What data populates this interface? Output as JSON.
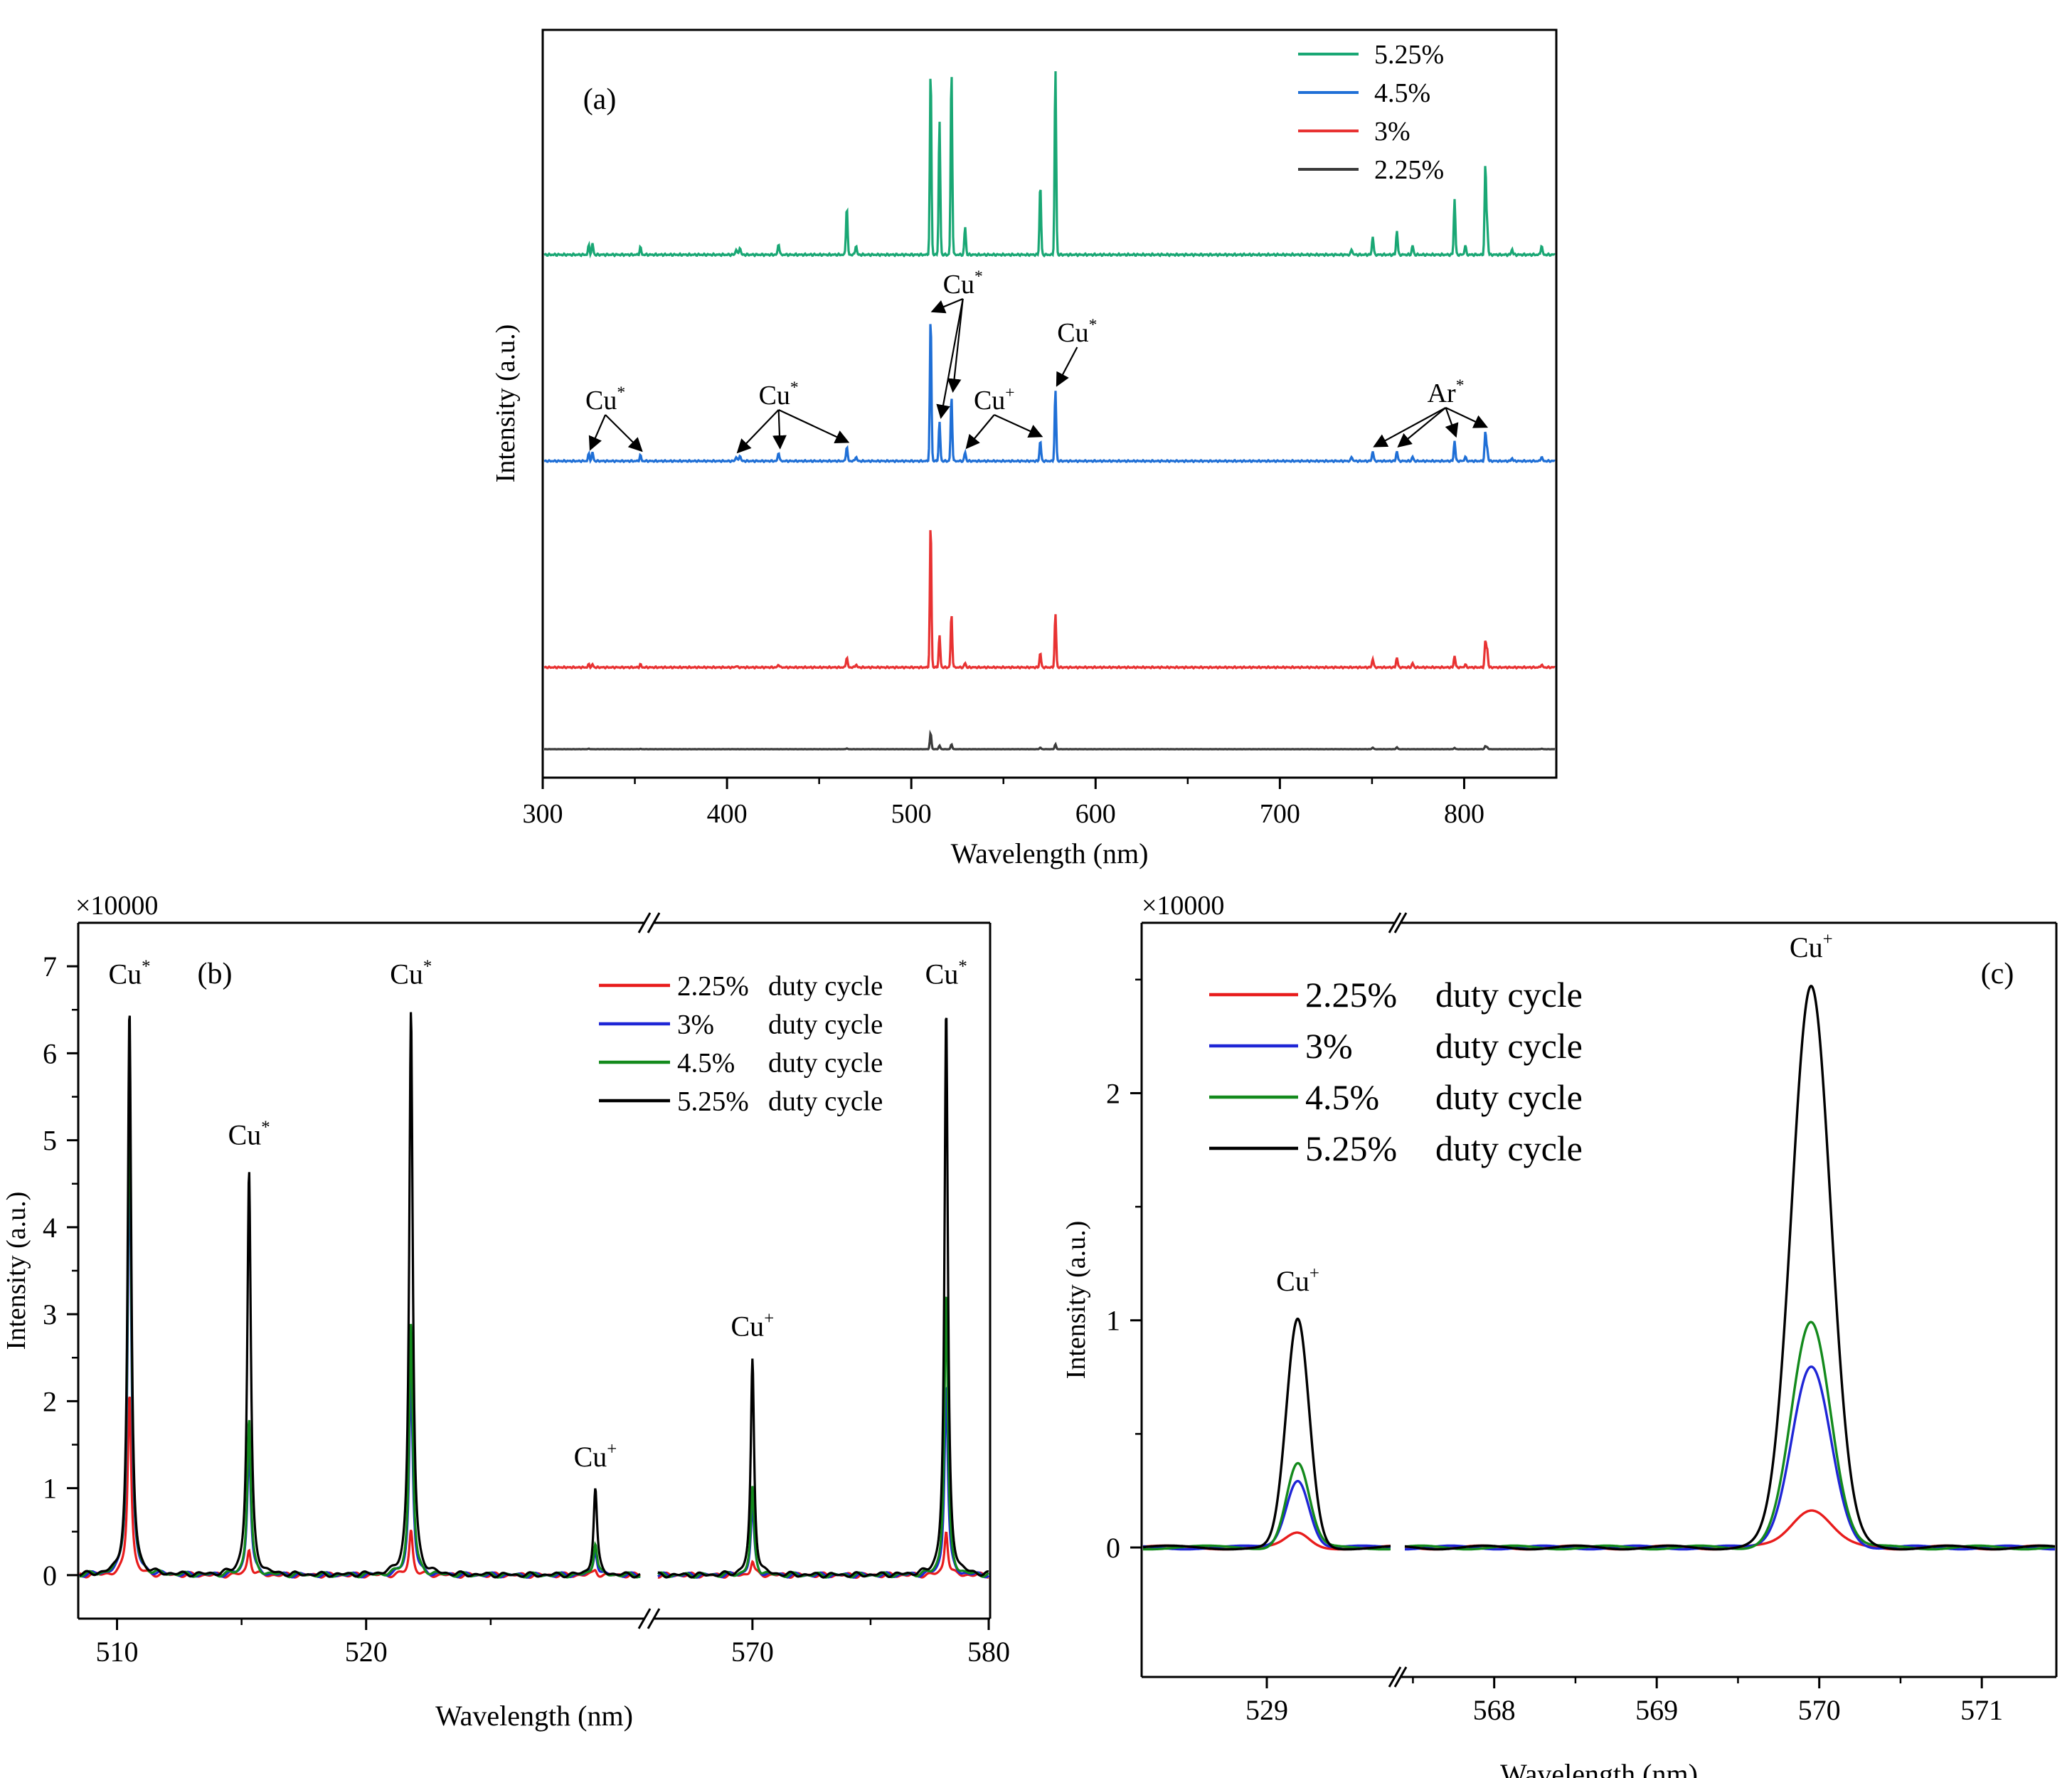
{
  "chart_data": [
    {
      "id": "a",
      "type": "line",
      "panel_label": "(a)",
      "xlabel": "Wavelength (nm)",
      "ylabel": "Intensity (a.u.)",
      "xlim": [
        300,
        850
      ],
      "xticks": [
        300,
        400,
        500,
        600,
        700,
        800
      ],
      "stacked_offset_spectra": true,
      "legend_position": "top-right",
      "series": [
        {
          "name": "5.25%",
          "color": "#19a774",
          "scale": 1.0,
          "peaks": [
            [
              325,
              0.05
            ],
            [
              327,
              0.06
            ],
            [
              353,
              0.04
            ],
            [
              405,
              0.03
            ],
            [
              407,
              0.04
            ],
            [
              428,
              0.06
            ],
            [
              465,
              0.26
            ],
            [
              470,
              0.05
            ],
            [
              510.5,
              1.0
            ],
            [
              515.3,
              0.72
            ],
            [
              521.8,
              1.0
            ],
            [
              529.2,
              0.15
            ],
            [
              570,
              0.38
            ],
            [
              578.2,
              1.0
            ],
            [
              739,
              0.03
            ],
            [
              750.4,
              0.1
            ],
            [
              763.5,
              0.13
            ],
            [
              772,
              0.05
            ],
            [
              794.8,
              0.3
            ],
            [
              800.6,
              0.05
            ],
            [
              811.5,
              0.48
            ],
            [
              812.5,
              0.15
            ],
            [
              826,
              0.03
            ],
            [
              842,
              0.05
            ]
          ]
        },
        {
          "name": "4.5%",
          "color": "#1f6fd6",
          "scale": 0.77,
          "peaks": [
            [
              325,
              0.05
            ],
            [
              327,
              0.06
            ],
            [
              353,
              0.04
            ],
            [
              405,
              0.03
            ],
            [
              407,
              0.04
            ],
            [
              428,
              0.06
            ],
            [
              465,
              0.1
            ],
            [
              470,
              0.03
            ],
            [
              510.5,
              1.0
            ],
            [
              515.3,
              0.27
            ],
            [
              521.8,
              0.45
            ],
            [
              529.2,
              0.06
            ],
            [
              570,
              0.14
            ],
            [
              578.2,
              0.49
            ],
            [
              739,
              0.03
            ],
            [
              750.4,
              0.07
            ],
            [
              763.5,
              0.07
            ],
            [
              772,
              0.03
            ],
            [
              794.8,
              0.14
            ],
            [
              800.6,
              0.03
            ],
            [
              811.5,
              0.2
            ],
            [
              812.5,
              0.08
            ],
            [
              826,
              0.02
            ],
            [
              842,
              0.03
            ]
          ]
        },
        {
          "name": "3%",
          "color": "#e83232",
          "scale": 0.78,
          "peaks": [
            [
              325,
              0.02
            ],
            [
              327,
              0.02
            ],
            [
              353,
              0.02
            ],
            [
              405,
              0.01
            ],
            [
              428,
              0.02
            ],
            [
              465,
              0.07
            ],
            [
              470,
              0.02
            ],
            [
              510.5,
              1.0
            ],
            [
              515.3,
              0.22
            ],
            [
              521.8,
              0.37
            ],
            [
              529.2,
              0.03
            ],
            [
              570,
              0.1
            ],
            [
              578.2,
              0.37
            ],
            [
              750.4,
              0.06
            ],
            [
              763.5,
              0.07
            ],
            [
              772,
              0.03
            ],
            [
              794.8,
              0.08
            ],
            [
              800.6,
              0.02
            ],
            [
              811.5,
              0.18
            ],
            [
              812.5,
              0.12
            ],
            [
              842,
              0.02
            ]
          ]
        },
        {
          "name": "2.25%",
          "color": "#3a3a3a",
          "scale": 0.26,
          "peaks": [
            [
              325,
              0.03
            ],
            [
              353,
              0.02
            ],
            [
              465,
              0.05
            ],
            [
              510.5,
              1.0
            ],
            [
              515.3,
              0.22
            ],
            [
              521.8,
              0.3
            ],
            [
              570,
              0.1
            ],
            [
              578.2,
              0.3
            ],
            [
              750.4,
              0.1
            ],
            [
              763.5,
              0.12
            ],
            [
              794.8,
              0.08
            ],
            [
              811.5,
              0.18
            ],
            [
              812.5,
              0.12
            ],
            [
              842,
              0.03
            ]
          ]
        }
      ],
      "annotations": [
        {
          "text": "Cu",
          "sup": "*",
          "x": 334,
          "targets": [
            325,
            353
          ]
        },
        {
          "text": "Cu",
          "sup": "*",
          "x": 428,
          "targets": [
            405,
            428,
            465
          ]
        },
        {
          "text": "Cu",
          "sup": "*",
          "x": 528,
          "targets": [
            510.5,
            515.3,
            521.8
          ]
        },
        {
          "text": "Cu",
          "sup": "+",
          "x": 545,
          "targets": [
            529.2,
            570
          ]
        },
        {
          "text": "Cu",
          "sup": "*",
          "x": 590,
          "targets": [
            578.2
          ]
        },
        {
          "text": "Ar",
          "sup": "*",
          "x": 790,
          "targets": [
            750.4,
            763.5,
            794.8,
            811.5
          ]
        }
      ]
    },
    {
      "id": "b",
      "type": "line",
      "panel_label": "(b)",
      "multiplier": "×10000",
      "xlabel": "Wavelength (nm)",
      "ylabel": "Intensity (a.u.)",
      "ylim": [
        -0.5,
        7.5
      ],
      "yticks": [
        0,
        1,
        2,
        3,
        4,
        5,
        6,
        7
      ],
      "broken_x_axis": [
        [
          508.5,
          531
        ],
        [
          566,
          580
        ]
      ],
      "xticks": [
        510,
        520,
        570,
        580
      ],
      "legend_position": "top-right",
      "series": [
        {
          "name": "2.25% duty cycle",
          "label_pct": "2.25%",
          "label_rest": "duty cycle",
          "color": "#e81c1c",
          "peaks": [
            [
              510.5,
              2.1
            ],
            [
              515.3,
              0.3
            ],
            [
              521.8,
              0.52
            ],
            [
              529.2,
              0.06
            ],
            [
              570,
              0.16
            ],
            [
              578.2,
              0.52
            ]
          ]
        },
        {
          "name": "3%     duty cycle",
          "label_pct": "3%",
          "label_rest": "duty cycle",
          "color": "#1f26d6",
          "peaks": [
            [
              510.5,
              5.0
            ],
            [
              515.3,
              1.5
            ],
            [
              521.8,
              2.3
            ],
            [
              529.2,
              0.3
            ],
            [
              570,
              0.8
            ],
            [
              578.2,
              2.2
            ]
          ]
        },
        {
          "name": "4.5%   duty cycle",
          "label_pct": "4.5%",
          "label_rest": "duty cycle",
          "color": "#138a1c",
          "peaks": [
            [
              510.5,
              5.7
            ],
            [
              515.3,
              1.8
            ],
            [
              521.8,
              2.9
            ],
            [
              529.2,
              0.38
            ],
            [
              570,
              1.0
            ],
            [
              578.2,
              3.25
            ]
          ]
        },
        {
          "name": "5.25% duty cycle",
          "label_pct": "5.25%",
          "label_rest": "duty cycle",
          "color": "#000000",
          "peaks": [
            [
              510.5,
              6.5
            ],
            [
              515.3,
              4.65
            ],
            [
              521.8,
              6.5
            ],
            [
              529.2,
              1.0
            ],
            [
              570,
              2.48
            ],
            [
              578.2,
              6.5
            ]
          ]
        }
      ],
      "annotations": [
        {
          "text": "Cu",
          "sup": "*",
          "x": 510.5,
          "y": 6.8
        },
        {
          "text": "Cu",
          "sup": "*",
          "x": 515.3,
          "y": 4.95
        },
        {
          "text": "Cu",
          "sup": "*",
          "x": 521.8,
          "y": 6.8
        },
        {
          "text": "Cu",
          "sup": "+",
          "x": 529.2,
          "y": 1.25
        },
        {
          "text": "Cu",
          "sup": "+",
          "x": 570,
          "y": 2.75
        },
        {
          "text": "Cu",
          "sup": "*",
          "x": 578.2,
          "y": 6.8
        }
      ]
    },
    {
      "id": "c",
      "type": "line",
      "panel_label": "(c)",
      "multiplier": "×10000",
      "xlabel": "Wavelength (nm)",
      "ylabel": "Intensity (a.u.)",
      "ylim": [
        -0.57,
        2.75
      ],
      "yticks": [
        0,
        1,
        2
      ],
      "broken_x_axis": [
        [
          528.4,
          529.6
        ],
        [
          567.45,
          571.45
        ]
      ],
      "xticks": [
        529,
        568,
        569,
        570,
        571
      ],
      "legend_position": "top-left",
      "series": [
        {
          "name": "2.25% duty cycle",
          "label_pct": "2.25%",
          "label_rest": "duty cycle",
          "color": "#e81c1c",
          "peaks": [
            [
              529.15,
              0.06
            ],
            [
              569.95,
              0.17
            ]
          ]
        },
        {
          "name": "3%     duty cycle",
          "label_pct": "3%",
          "label_rest": "duty cycle",
          "color": "#1f26d6",
          "peaks": [
            [
              529.15,
              0.3
            ],
            [
              569.95,
              0.79
            ]
          ]
        },
        {
          "name": "4.5%   duty cycle",
          "label_pct": "4.5%",
          "label_rest": "duty cycle",
          "color": "#138a1c",
          "peaks": [
            [
              529.15,
              0.37
            ],
            [
              569.95,
              0.99
            ]
          ]
        },
        {
          "name": "5.25% duty cycle",
          "label_pct": "5.25%",
          "label_rest": "duty cycle",
          "color": "#000000",
          "peaks": [
            [
              529.15,
              1.0
            ],
            [
              569.95,
              2.48
            ]
          ]
        }
      ],
      "annotations": [
        {
          "text": "Cu",
          "sup": "+",
          "x": 529.15,
          "y": 1.13
        },
        {
          "text": "Cu",
          "sup": "+",
          "x": 569.95,
          "y": 2.6
        }
      ]
    }
  ]
}
